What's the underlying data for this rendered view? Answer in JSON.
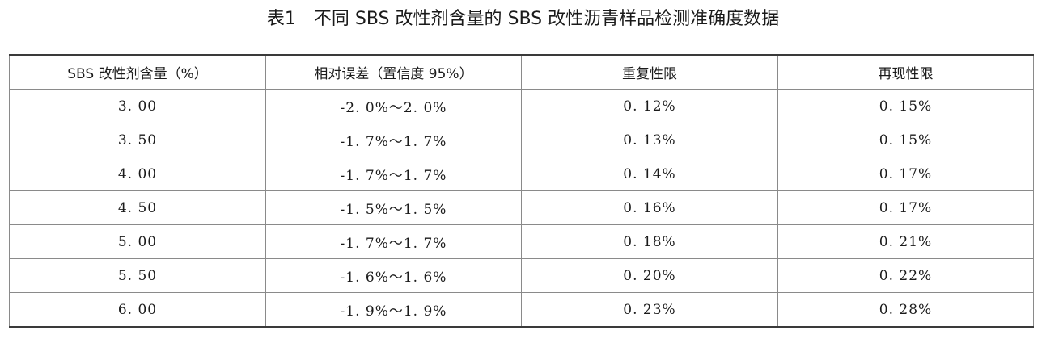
{
  "caption": {
    "label": "表1",
    "title": "不同 SBS 改性剂含量的 SBS 改性沥青样品检测准确度数据"
  },
  "table": {
    "headers": [
      "SBS 改性剂含量（%）",
      "相对误差（置信度 95%）",
      "重复性限",
      "再现性限"
    ],
    "rows": [
      [
        "3. 00",
        "-2. 0%～2. 0%",
        "0. 12%",
        "0. 15%"
      ],
      [
        "3. 50",
        "-1. 7%～1. 7%",
        "0. 13%",
        "0. 15%"
      ],
      [
        "4. 00",
        "-1. 7%～1. 7%",
        "0. 14%",
        "0. 17%"
      ],
      [
        "4. 50",
        "-1. 5%～1. 5%",
        "0. 16%",
        "0. 17%"
      ],
      [
        "5. 00",
        "-1. 7%～1. 7%",
        "0. 18%",
        "0. 21%"
      ],
      [
        "5. 50",
        "-1. 6%～1. 6%",
        "0. 20%",
        "0. 22%"
      ],
      [
        "6. 00",
        "-1. 9%～1. 9%",
        "0. 23%",
        "0. 28%"
      ]
    ]
  }
}
